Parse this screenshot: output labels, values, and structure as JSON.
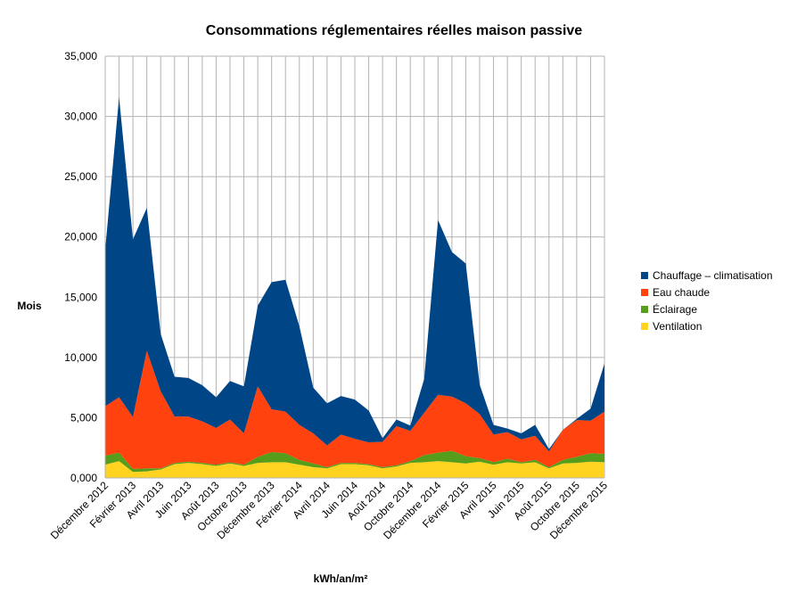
{
  "chart_data": {
    "type": "area",
    "stacked": true,
    "title": "Consommations réglementaires réelles maison passive",
    "xlabel": "kWh/an/m²",
    "ylabel": "Mois",
    "ylim": [
      0,
      35000
    ],
    "yticks": [
      "0,000",
      "5,000",
      "10,000",
      "15,000",
      "20,000",
      "25,000",
      "30,000",
      "35,000"
    ],
    "grid": true,
    "legend_position": "right",
    "x": [
      "Décembre 2012",
      "Janvier 2013",
      "Février 2013",
      "Mars 2013",
      "Avril 2013",
      "Mai 2013",
      "Juin 2013",
      "Juillet 2013",
      "Août 2013",
      "Septembre 2013",
      "Octobre 2013",
      "Novembre 2013",
      "Décembre 2013",
      "Janvier 2014",
      "Février 2014",
      "Mars 2014",
      "Avril 2014",
      "Mai 2014",
      "Juin 2014",
      "Juillet 2014",
      "Août 2014",
      "Septembre 2014",
      "Octobre 2014",
      "Novembre 2014",
      "Décembre 2014",
      "Janvier 2015",
      "Février 2015",
      "Mars 2015",
      "Avril 2015",
      "Mai 2015",
      "Juin 2015",
      "Juillet 2015",
      "Août 2015",
      "Septembre 2015",
      "Octobre 2015",
      "Novembre 2015",
      "Décembre 2015"
    ],
    "x_tick_labels": [
      "Décembre 2012",
      "Février 2013",
      "Avril 2013",
      "Juin 2013",
      "Août 2013",
      "Octobre 2013",
      "Décembre 2013",
      "Février 2014",
      "Avril 2014",
      "Juin 2014",
      "Août 2014",
      "Octobre 2014",
      "Décembre 2014",
      "Février 2015",
      "Avril 2015",
      "Juin 2015",
      "Août 2015",
      "Octobre 2015",
      "Décembre 2015"
    ],
    "series": [
      {
        "name": "Ventilation",
        "color": "#ffd320",
        "values": [
          1100,
          1400,
          500,
          550,
          700,
          1150,
          1250,
          1150,
          1000,
          1200,
          1000,
          1250,
          1300,
          1300,
          1100,
          900,
          800,
          1150,
          1150,
          1050,
          800,
          950,
          1250,
          1300,
          1400,
          1300,
          1200,
          1350,
          1100,
          1300,
          1200,
          1300,
          800,
          1200,
          1250,
          1350,
          1300
        ]
      },
      {
        "name": "Éclairage",
        "color": "#579d1c",
        "values": [
          750,
          700,
          250,
          250,
          100,
          100,
          100,
          100,
          100,
          100,
          100,
          500,
          850,
          750,
          400,
          300,
          100,
          100,
          100,
          100,
          100,
          100,
          150,
          600,
          700,
          950,
          600,
          300,
          200,
          300,
          100,
          200,
          100,
          300,
          500,
          700,
          700
        ]
      },
      {
        "name": "Eau chaude",
        "color": "#ff420e",
        "values": [
          4100,
          4600,
          4300,
          9750,
          6400,
          3850,
          3750,
          3450,
          3050,
          3550,
          2600,
          5850,
          3550,
          3450,
          2900,
          2500,
          1800,
          2350,
          2000,
          1800,
          2100,
          3250,
          2500,
          3500,
          4800,
          4500,
          4400,
          3650,
          2300,
          2200,
          1900,
          2000,
          1300,
          2500,
          3050,
          2700,
          3500
        ]
      },
      {
        "name": "Chauffage – climatisation",
        "color": "#004586",
        "values": [
          13000,
          24900,
          14750,
          11850,
          4750,
          3300,
          3200,
          3000,
          2550,
          3200,
          3900,
          6700,
          10550,
          10950,
          8200,
          3800,
          3500,
          3200,
          3250,
          2650,
          300,
          550,
          450,
          2800,
          14500,
          12000,
          11600,
          2450,
          800,
          300,
          500,
          900,
          200,
          0,
          100,
          1000,
          4000
        ]
      }
    ]
  }
}
